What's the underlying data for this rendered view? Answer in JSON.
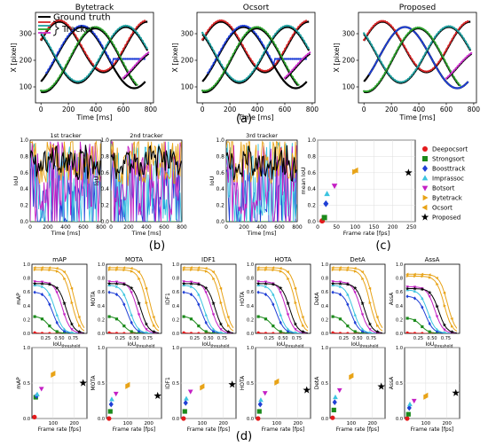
{
  "panel_labels": {
    "a": "(a)",
    "b": "(b)",
    "c": "(c)",
    "d": "(d)"
  },
  "colors": {
    "ground_truth": "#000000",
    "track_red": "#d62728",
    "track_teal": "#1f9e9e",
    "track_green": "#2ca02c",
    "track_purple": "#cc33cc",
    "track_blue": "#1f3fd6",
    "Deepocsort": "#e41a1c",
    "Strongsort": "#1b8a1b",
    "Boosttrack": "#1f3fd6",
    "Imprassoc": "#3cc4e0",
    "Botsort": "#c41fc4",
    "Bytetrack": "#e8a317",
    "Ocsort": "#e8a317",
    "Proposed": "#000000"
  },
  "chart_data": [
    {
      "type": "line",
      "title": "Bytetrack",
      "xlabel": "Time [ms]",
      "ylabel": "X [pixel]",
      "xticks": [
        0,
        200,
        400,
        600,
        800
      ],
      "yticks": [
        100,
        200,
        300
      ],
      "xlim": [
        -40,
        820
      ],
      "ylim": [
        40,
        380
      ],
      "legend": {
        "items": [
          "Ground truth",
          "Tracker"
        ],
        "placement": "top-left"
      },
      "series": [
        {
          "role": "truth",
          "c": 250,
          "a": 95,
          "p": 640,
          "ph": 0.25,
          "x0": 0,
          "x1": 780,
          "track_color": "track_red",
          "track_x0": 0,
          "track_x1": 760
        },
        {
          "role": "truth",
          "c": 210,
          "a": 115,
          "p": 760,
          "ph": -0.9,
          "x0": 0,
          "x1": 760,
          "track_color": "track_blue",
          "track_x0": 40,
          "track_x1": 760
        },
        {
          "role": "truth",
          "c": 220,
          "a": 105,
          "p": 700,
          "ph": 2.3,
          "x0": 0,
          "x1": 780,
          "track_color": "track_teal",
          "track_x0": 0,
          "track_x1": 780
        },
        {
          "role": "truth",
          "c": 200,
          "a": 120,
          "p": 760,
          "ph": -1.7,
          "x0": 0,
          "x1": 700,
          "track_color": "track_green",
          "track_x0": 0,
          "track_x1": 700
        },
        {
          "role": "truth",
          "c": 170,
          "a": 70,
          "p": 760,
          "ph": 0.7,
          "x0": 600,
          "x1": 790,
          "track_color": "track_purple",
          "track_x0": 600,
          "track_x1": 790
        }
      ]
    },
    {
      "type": "line",
      "title": "Ocsort",
      "xlabel": "Time [ms]",
      "ylabel": "X [pixel]",
      "xticks": [
        0,
        200,
        400,
        600,
        800
      ],
      "yticks": [
        100,
        200,
        300
      ],
      "xlim": [
        -40,
        820
      ],
      "ylim": [
        40,
        380
      ],
      "series": [
        {
          "role": "truth",
          "c": 250,
          "a": 95,
          "p": 640,
          "ph": 0.25,
          "x0": 0,
          "x1": 780,
          "track_color": "track_red",
          "track_x0": 0,
          "track_x1": 760
        },
        {
          "role": "truth",
          "c": 210,
          "a": 115,
          "p": 760,
          "ph": -0.9,
          "x0": 0,
          "x1": 760,
          "track_color": "track_blue",
          "track_x0": 40,
          "track_x1": 760
        },
        {
          "role": "truth",
          "c": 220,
          "a": 105,
          "p": 700,
          "ph": 2.3,
          "x0": 0,
          "x1": 780,
          "track_color": "track_teal",
          "track_x0": 0,
          "track_x1": 780
        },
        {
          "role": "truth",
          "c": 200,
          "a": 120,
          "p": 760,
          "ph": -1.7,
          "x0": 0,
          "x1": 700,
          "track_color": "track_green",
          "track_x0": 0,
          "track_x1": 700
        },
        {
          "role": "truth",
          "c": 170,
          "a": 70,
          "p": 760,
          "ph": 0.7,
          "x0": 600,
          "x1": 790,
          "track_color": "track_purple",
          "track_x0": 600,
          "track_x1": 790
        }
      ]
    },
    {
      "type": "line",
      "title": "Proposed",
      "xlabel": "Time [ms]",
      "ylabel": "X [pixel]",
      "xticks": [
        0,
        200,
        400,
        600,
        800
      ],
      "yticks": [
        100,
        200,
        300
      ],
      "xlim": [
        -40,
        820
      ],
      "ylim": [
        40,
        380
      ],
      "series": [
        {
          "role": "truth",
          "c": 250,
          "a": 95,
          "p": 640,
          "ph": 0.25,
          "x0": 0,
          "x1": 780,
          "track_color": "track_red",
          "track_x0": 0,
          "track_x1": 760
        },
        {
          "role": "truth",
          "c": 210,
          "a": 115,
          "p": 760,
          "ph": -0.9,
          "x0": 0,
          "x1": 760,
          "track_color": "track_blue",
          "track_x0": 40,
          "track_x1": 760
        },
        {
          "role": "truth",
          "c": 220,
          "a": 105,
          "p": 700,
          "ph": 2.3,
          "x0": 0,
          "x1": 780,
          "track_color": "track_teal",
          "track_x0": 0,
          "track_x1": 780
        },
        {
          "role": "truth",
          "c": 200,
          "a": 120,
          "p": 760,
          "ph": -1.7,
          "x0": 0,
          "x1": 700,
          "track_color": "track_green",
          "track_x0": 0,
          "track_x1": 700
        },
        {
          "role": "truth",
          "c": 170,
          "a": 70,
          "p": 760,
          "ph": 0.7,
          "x0": 600,
          "x1": 790,
          "track_color": "track_purple",
          "track_x0": 600,
          "track_x1": 790
        }
      ]
    },
    {
      "type": "line",
      "title": "1st tracker",
      "xlabel": "Time [ms]",
      "ylabel": "IoU",
      "xticks": [
        0,
        200,
        400,
        600,
        800
      ],
      "yticks": [
        0.0,
        0.2,
        0.4,
        0.6,
        0.8,
        1.0
      ],
      "xlim": [
        0,
        800
      ],
      "ylim": [
        0,
        1.0
      ],
      "series_trackers": [
        "Deepocsort",
        "Strongsort",
        "Boosttrack",
        "Imprassoc",
        "Botsort",
        "Ocsort",
        "Proposed"
      ]
    },
    {
      "type": "line",
      "title": "2nd tracker",
      "xlabel": "Time [ms]",
      "ylabel": "IoU",
      "xticks": [
        0,
        200,
        400,
        600,
        800
      ],
      "yticks": [
        0.0,
        0.2,
        0.4,
        0.6,
        0.8,
        1.0
      ],
      "xlim": [
        0,
        800
      ],
      "ylim": [
        0,
        1.0
      ],
      "series_trackers": [
        "Deepocsort",
        "Strongsort",
        "Boosttrack",
        "Imprassoc",
        "Botsort",
        "Ocsort",
        "Proposed"
      ]
    },
    {
      "type": "line",
      "title": "3rd tracker",
      "xlabel": "Time [ms]",
      "ylabel": "IoU",
      "xticks": [
        0,
        200,
        400,
        600,
        800
      ],
      "yticks": [
        0.0,
        0.2,
        0.4,
        0.6,
        0.8,
        1.0
      ],
      "xlim": [
        0,
        800
      ],
      "ylim": [
        0,
        1.0
      ],
      "series_trackers": [
        "Deepocsort",
        "Strongsort",
        "Boosttrack",
        "Imprassoc",
        "Botsort",
        "Ocsort",
        "Proposed"
      ]
    },
    {
      "type": "scatter",
      "xlabel": "Frame rate [fps]",
      "ylabel": "mean IoU",
      "xticks": [
        0,
        50,
        100,
        150,
        200,
        250
      ],
      "yticks": [
        0.0,
        0.2,
        0.4,
        0.6,
        0.8,
        1.0
      ],
      "xlim": [
        0,
        260
      ],
      "ylim": [
        0,
        1.0
      ],
      "points": [
        {
          "name": "Deepocsort",
          "x": 12,
          "y": 0.01
        },
        {
          "name": "Strongsort",
          "x": 18,
          "y": 0.05
        },
        {
          "name": "Boosttrack",
          "x": 22,
          "y": 0.22
        },
        {
          "name": "Imprassoc",
          "x": 25,
          "y": 0.34
        },
        {
          "name": "Botsort",
          "x": 45,
          "y": 0.44
        },
        {
          "name": "Bytetrack",
          "x": 98,
          "y": 0.61
        },
        {
          "name": "Ocsort",
          "x": 102,
          "y": 0.63
        },
        {
          "name": "Proposed",
          "x": 242,
          "y": 0.6
        }
      ],
      "legend": {
        "placement": "right",
        "items": [
          "Deepocsort",
          "Strongsort",
          "Boosttrack",
          "Imprassoc",
          "Botsort",
          "Bytetrack",
          "Ocsort",
          "Proposed"
        ]
      }
    }
  ],
  "d_panels": {
    "metrics": [
      "mAP",
      "MOTA",
      "IDF1",
      "HOTA",
      "DetA",
      "AssA"
    ],
    "top_xticks": [
      "0.25",
      "0.50",
      "0.75"
    ],
    "top_xlabel": "IoU",
    "top_xlabel_sub": "threshold",
    "top_ylim": [
      0,
      1.0
    ],
    "top_yticks": [
      0.0,
      0.2,
      0.4,
      0.6,
      0.8,
      1.0
    ],
    "bottom_xlabel": "Frame rate [fps]",
    "bottom_xticks": [
      100,
      200
    ],
    "bottom_ylim": [
      0,
      1.0
    ],
    "bottom_yticks": [
      0.0,
      0.5,
      1.0
    ],
    "bottom_points": {
      "mAP": [
        [
          "Deepocsort",
          12,
          0.02
        ],
        [
          "Strongsort",
          18,
          0.3
        ],
        [
          "Boosttrack",
          22,
          0.32
        ],
        [
          "Imprassoc",
          25,
          0.34
        ],
        [
          "Botsort",
          45,
          0.42
        ],
        [
          "Bytetrack",
          98,
          0.61
        ],
        [
          "Ocsort",
          102,
          0.64
        ],
        [
          "Proposed",
          242,
          0.5
        ]
      ],
      "MOTA": [
        [
          "Deepocsort",
          12,
          0.0
        ],
        [
          "Strongsort",
          18,
          0.1
        ],
        [
          "Boosttrack",
          22,
          0.2
        ],
        [
          "Imprassoc",
          25,
          0.27
        ],
        [
          "Botsort",
          45,
          0.35
        ],
        [
          "Bytetrack",
          98,
          0.45
        ],
        [
          "Ocsort",
          102,
          0.48
        ],
        [
          "Proposed",
          242,
          0.32
        ]
      ],
      "IDF1": [
        [
          "Deepocsort",
          12,
          0.0
        ],
        [
          "Strongsort",
          18,
          0.1
        ],
        [
          "Boosttrack",
          22,
          0.22
        ],
        [
          "Imprassoc",
          25,
          0.28
        ],
        [
          "Botsort",
          45,
          0.38
        ],
        [
          "Bytetrack",
          98,
          0.43
        ],
        [
          "Ocsort",
          102,
          0.46
        ],
        [
          "Proposed",
          242,
          0.48
        ]
      ],
      "HOTA": [
        [
          "Deepocsort",
          12,
          0.0
        ],
        [
          "Strongsort",
          18,
          0.1
        ],
        [
          "Boosttrack",
          22,
          0.2
        ],
        [
          "Imprassoc",
          25,
          0.26
        ],
        [
          "Botsort",
          45,
          0.36
        ],
        [
          "Bytetrack",
          98,
          0.5
        ],
        [
          "Ocsort",
          102,
          0.53
        ],
        [
          "Proposed",
          242,
          0.4
        ]
      ],
      "DetA": [
        [
          "Deepocsort",
          12,
          0.01
        ],
        [
          "Strongsort",
          18,
          0.12
        ],
        [
          "Boosttrack",
          22,
          0.23
        ],
        [
          "Imprassoc",
          25,
          0.3
        ],
        [
          "Botsort",
          45,
          0.4
        ],
        [
          "Bytetrack",
          98,
          0.58
        ],
        [
          "Ocsort",
          102,
          0.61
        ],
        [
          "Proposed",
          242,
          0.45
        ]
      ],
      "AssA": [
        [
          "Deepocsort",
          12,
          0.0
        ],
        [
          "Strongsort",
          18,
          0.06
        ],
        [
          "Boosttrack",
          22,
          0.15
        ],
        [
          "Imprassoc",
          25,
          0.2
        ],
        [
          "Botsort",
          45,
          0.25
        ],
        [
          "Bytetrack",
          98,
          0.3
        ],
        [
          "Ocsort",
          102,
          0.33
        ],
        [
          "Proposed",
          242,
          0.36
        ]
      ]
    },
    "top_curves": {
      "Proposed": [
        0.72,
        0.62,
        0.9,
        0.5
      ],
      "Ocsort": [
        0.95,
        0.78,
        0.95,
        0.5
      ],
      "Bytetrack": [
        0.92,
        0.72,
        0.92,
        0.5
      ],
      "Botsort": [
        0.75,
        0.55,
        0.75,
        0.5
      ],
      "Imprassoc": [
        0.7,
        0.42,
        0.7,
        0.5
      ],
      "Boosttrack": [
        0.6,
        0.38,
        0.55,
        0.5
      ],
      "Strongsort": [
        0.25,
        0.3,
        0.2,
        0.5
      ],
      "Deepocsort": [
        0.02,
        0.05,
        0.02,
        0.5
      ]
    }
  }
}
